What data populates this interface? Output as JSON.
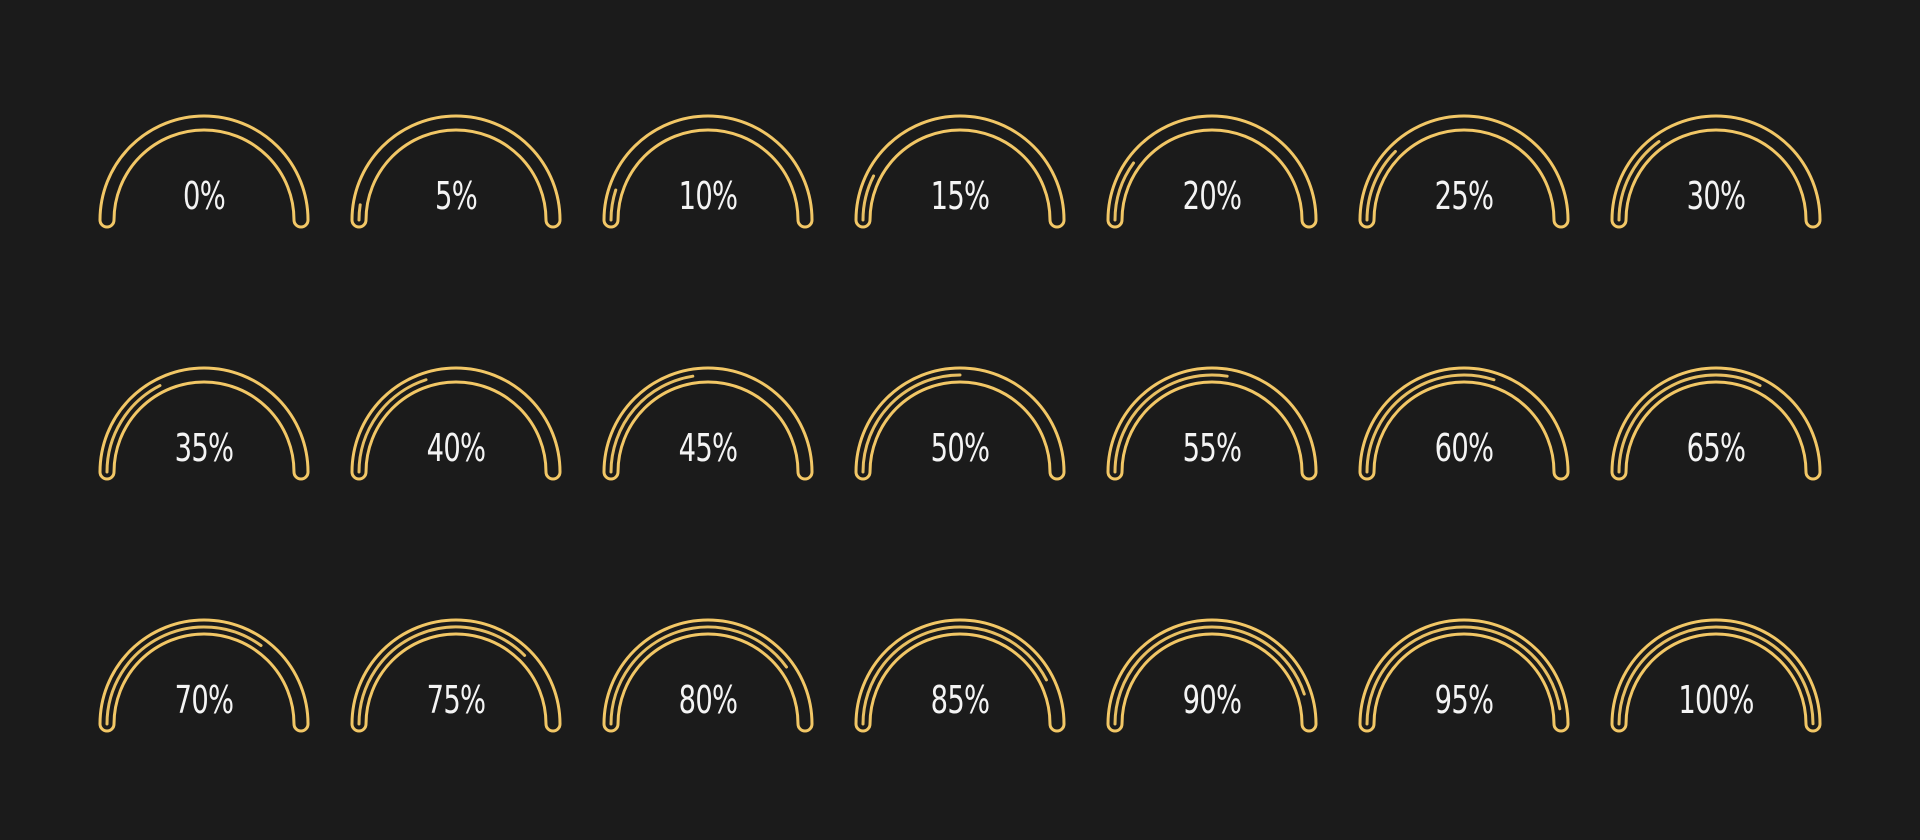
{
  "colors": {
    "background": "#1b1b1b",
    "gauge_outline": "#f2c766",
    "gauge_fill": "#e8bf62",
    "label": "#f4f4f4"
  },
  "gauges": [
    {
      "label": "0%",
      "value": 0
    },
    {
      "label": "5%",
      "value": 5
    },
    {
      "label": "10%",
      "value": 10
    },
    {
      "label": "15%",
      "value": 15
    },
    {
      "label": "20%",
      "value": 20
    },
    {
      "label": "25%",
      "value": 25
    },
    {
      "label": "30%",
      "value": 30
    },
    {
      "label": "35%",
      "value": 35
    },
    {
      "label": "40%",
      "value": 40
    },
    {
      "label": "45%",
      "value": 45
    },
    {
      "label": "50%",
      "value": 50
    },
    {
      "label": "55%",
      "value": 55
    },
    {
      "label": "60%",
      "value": 60
    },
    {
      "label": "65%",
      "value": 65
    },
    {
      "label": "70%",
      "value": 70
    },
    {
      "label": "75%",
      "value": 75
    },
    {
      "label": "80%",
      "value": 80
    },
    {
      "label": "85%",
      "value": 85
    },
    {
      "label": "90%",
      "value": 90
    },
    {
      "label": "95%",
      "value": 95
    },
    {
      "label": "100%",
      "value": 100
    }
  ]
}
